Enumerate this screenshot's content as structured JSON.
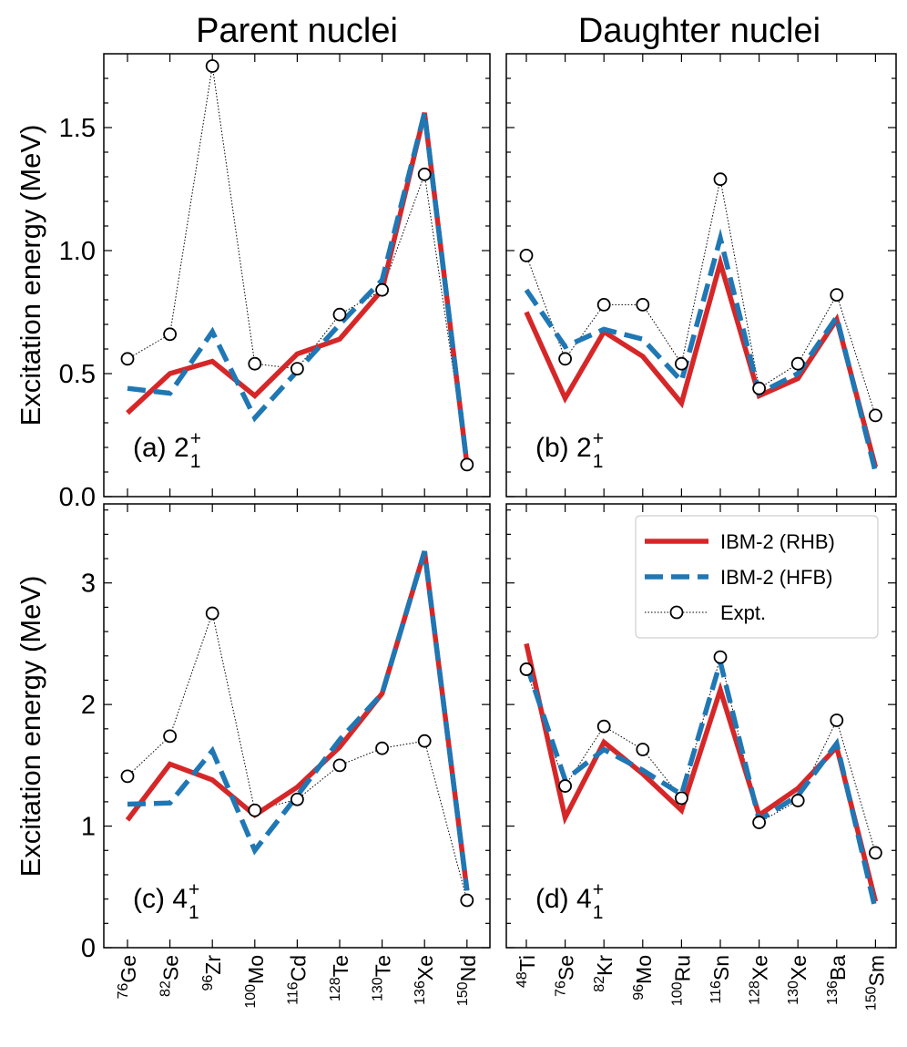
{
  "figure": {
    "left_title": "Parent nuclei",
    "right_title": "Daughter nuclei",
    "ylabel": "Excitation energy (MeV)",
    "colors": {
      "rhb": "#d62728",
      "hfb": "#1f77b4",
      "expt": "#000000"
    }
  },
  "legend": {
    "placement": "upper-right of panel (d)",
    "entries": [
      {
        "key": "rhb",
        "label": "IBM-2 (RHB)"
      },
      {
        "key": "hfb",
        "label": "IBM-2 (HFB)"
      },
      {
        "key": "expt",
        "label": "Expt."
      }
    ]
  },
  "chart_data": [
    {
      "id": "a",
      "type": "line",
      "panel_label": "(a) 2",
      "state": {
        "j": "2",
        "sub": "1",
        "sup": "+"
      },
      "xticks": [
        {
          "mass": "76",
          "el": "Ge"
        },
        {
          "mass": "82",
          "el": "Se"
        },
        {
          "mass": "96",
          "el": "Zr"
        },
        {
          "mass": "100",
          "el": "Mo"
        },
        {
          "mass": "116",
          "el": "Cd"
        },
        {
          "mass": "128",
          "el": "Te"
        },
        {
          "mass": "130",
          "el": "Te"
        },
        {
          "mass": "136",
          "el": "Xe"
        },
        {
          "mass": "150",
          "el": "Nd"
        }
      ],
      "ylim": [
        0,
        1.8
      ],
      "yticks": [
        0.0,
        0.5,
        1.0,
        1.5
      ],
      "ytick_labels": [
        "0.0",
        "0.5",
        "1.0",
        "1.5"
      ],
      "series": [
        {
          "key": "rhb",
          "name": "IBM-2 (RHB)",
          "values": [
            0.34,
            0.5,
            0.55,
            0.41,
            0.58,
            0.64,
            0.84,
            1.56,
            0.13
          ]
        },
        {
          "key": "hfb",
          "name": "IBM-2 (HFB)",
          "values": [
            0.44,
            0.42,
            0.67,
            0.32,
            0.51,
            0.7,
            0.88,
            1.56,
            0.13
          ]
        },
        {
          "key": "expt",
          "name": "Expt.",
          "values": [
            0.56,
            0.66,
            1.75,
            0.54,
            0.52,
            0.74,
            0.84,
            1.31,
            0.13
          ]
        }
      ]
    },
    {
      "id": "b",
      "type": "line",
      "panel_label": "(b) 2",
      "state": {
        "j": "2",
        "sub": "1",
        "sup": "+"
      },
      "xticks": [
        {
          "mass": "48",
          "el": "Ti"
        },
        {
          "mass": "76",
          "el": "Se"
        },
        {
          "mass": "82",
          "el": "Kr"
        },
        {
          "mass": "96",
          "el": "Mo"
        },
        {
          "mass": "100",
          "el": "Ru"
        },
        {
          "mass": "116",
          "el": "Sn"
        },
        {
          "mass": "128",
          "el": "Xe"
        },
        {
          "mass": "130",
          "el": "Xe"
        },
        {
          "mass": "136",
          "el": "Ba"
        },
        {
          "mass": "150",
          "el": "Sm"
        }
      ],
      "ylim": [
        0,
        1.8
      ],
      "yticks": [
        0.0,
        0.5,
        1.0,
        1.5
      ],
      "ytick_labels": [
        "",
        "",
        "",
        ""
      ],
      "series": [
        {
          "key": "rhb",
          "name": "IBM-2 (RHB)",
          "values": [
            0.75,
            0.4,
            0.67,
            0.57,
            0.38,
            0.95,
            0.41,
            0.48,
            0.72,
            0.12
          ]
        },
        {
          "key": "hfb",
          "name": "IBM-2 (HFB)",
          "values": [
            0.84,
            0.61,
            0.68,
            0.64,
            0.47,
            1.05,
            0.42,
            0.5,
            0.73,
            0.1
          ]
        },
        {
          "key": "expt",
          "name": "Expt.",
          "values": [
            0.98,
            0.56,
            0.78,
            0.78,
            0.54,
            1.29,
            0.44,
            0.54,
            0.82,
            0.33
          ]
        }
      ]
    },
    {
      "id": "c",
      "type": "line",
      "panel_label": "(c) 4",
      "state": {
        "j": "4",
        "sub": "1",
        "sup": "+"
      },
      "xticks": [
        {
          "mass": "76",
          "el": "Ge"
        },
        {
          "mass": "82",
          "el": "Se"
        },
        {
          "mass": "96",
          "el": "Zr"
        },
        {
          "mass": "100",
          "el": "Mo"
        },
        {
          "mass": "116",
          "el": "Cd"
        },
        {
          "mass": "128",
          "el": "Te"
        },
        {
          "mass": "130",
          "el": "Te"
        },
        {
          "mass": "136",
          "el": "Xe"
        },
        {
          "mass": "150",
          "el": "Nd"
        }
      ],
      "ylim": [
        0,
        3.65
      ],
      "yticks": [
        0,
        1,
        2,
        3
      ],
      "ytick_labels": [
        "0",
        "1",
        "2",
        "3"
      ],
      "series": [
        {
          "key": "rhb",
          "name": "IBM-2 (RHB)",
          "values": [
            1.05,
            1.51,
            1.38,
            1.09,
            1.32,
            1.65,
            2.09,
            3.26,
            0.47
          ]
        },
        {
          "key": "hfb",
          "name": "IBM-2 (HFB)",
          "values": [
            1.18,
            1.19,
            1.62,
            0.8,
            1.25,
            1.71,
            2.09,
            3.26,
            0.47
          ]
        },
        {
          "key": "expt",
          "name": "Expt.",
          "values": [
            1.41,
            1.74,
            2.75,
            1.13,
            1.22,
            1.5,
            1.64,
            1.7,
            0.39
          ]
        }
      ]
    },
    {
      "id": "d",
      "type": "line",
      "panel_label": "(d) 4",
      "state": {
        "j": "4",
        "sub": "1",
        "sup": "+"
      },
      "xticks": [
        {
          "mass": "48",
          "el": "Ti"
        },
        {
          "mass": "76",
          "el": "Se"
        },
        {
          "mass": "82",
          "el": "Kr"
        },
        {
          "mass": "96",
          "el": "Mo"
        },
        {
          "mass": "100",
          "el": "Ru"
        },
        {
          "mass": "116",
          "el": "Sn"
        },
        {
          "mass": "128",
          "el": "Xe"
        },
        {
          "mass": "130",
          "el": "Xe"
        },
        {
          "mass": "136",
          "el": "Ba"
        },
        {
          "mass": "150",
          "el": "Sm"
        }
      ],
      "ylim": [
        0,
        3.65
      ],
      "yticks": [
        0,
        1,
        2,
        3
      ],
      "ytick_labels": [
        "",
        "",
        "",
        ""
      ],
      "series": [
        {
          "key": "rhb",
          "name": "IBM-2 (RHB)",
          "values": [
            2.5,
            1.07,
            1.69,
            1.43,
            1.13,
            2.12,
            1.09,
            1.31,
            1.65,
            0.38
          ]
        },
        {
          "key": "hfb",
          "name": "IBM-2 (HFB)",
          "values": [
            2.33,
            1.38,
            1.63,
            1.46,
            1.26,
            2.35,
            1.05,
            1.25,
            1.68,
            0.31
          ]
        },
        {
          "key": "expt",
          "name": "Expt.",
          "values": [
            2.29,
            1.33,
            1.82,
            1.63,
            1.23,
            2.39,
            1.03,
            1.21,
            1.87,
            0.78
          ]
        }
      ]
    }
  ]
}
